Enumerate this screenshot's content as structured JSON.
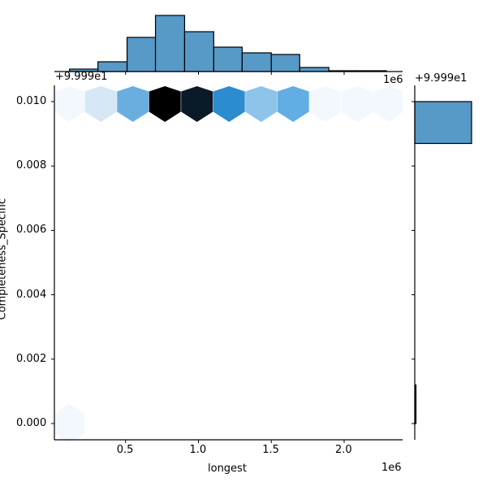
{
  "chart_data": {
    "type": "jointplot-hexbin",
    "title": "",
    "xlabel": "longest",
    "ylabel": "Completeness_Specific",
    "x_scale_label": "1e6",
    "y_offset_label": "+9.999e1",
    "x_ticks": [
      "0.5",
      "1.0",
      "1.5",
      "2.0"
    ],
    "x_tick_values": [
      500000,
      1000000,
      1500000,
      2000000
    ],
    "y_ticks": [
      "0.000",
      "0.002",
      "0.004",
      "0.006",
      "0.008",
      "0.010"
    ],
    "y_tick_values": [
      0.0,
      0.002,
      0.004,
      0.006,
      0.008,
      0.01
    ],
    "xlim": [
      5000,
      2400000
    ],
    "ylim": [
      -0.0005,
      0.0105
    ],
    "hexbin": {
      "colormap": "Blues",
      "cells": [
        {
          "x": 110000,
          "y": 0.01,
          "color": "#f2f8fd"
        },
        {
          "x": 330000,
          "y": 0.01,
          "color": "#d6e7f6"
        },
        {
          "x": 550000,
          "y": 0.01,
          "color": "#6aaee0"
        },
        {
          "x": 770000,
          "y": 0.01,
          "color": "#000000"
        },
        {
          "x": 990000,
          "y": 0.01,
          "color": "#0a1a29"
        },
        {
          "x": 1210000,
          "y": 0.01,
          "color": "#2d8bd0"
        },
        {
          "x": 1430000,
          "y": 0.01,
          "color": "#8ec3ea"
        },
        {
          "x": 1650000,
          "y": 0.01,
          "color": "#62aee4"
        },
        {
          "x": 1870000,
          "y": 0.01,
          "color": "#f2f8fd"
        },
        {
          "x": 2090000,
          "y": 0.01,
          "color": "#f2f8fd"
        },
        {
          "x": 2310000,
          "y": 0.01,
          "color": "#f2f8fd"
        },
        {
          "x": 110000,
          "y": 0.0,
          "color": "#f2f8fd"
        }
      ]
    },
    "marginal_x_histogram": {
      "bin_edges": [
        115000,
        310000,
        510000,
        705000,
        905000,
        1105000,
        1300000,
        1500000,
        1695000,
        1895000,
        2090000,
        2290000
      ],
      "counts": [
        3,
        12,
        42,
        69,
        49,
        30,
        23,
        21,
        5,
        1,
        1
      ],
      "color": "#5799c7"
    },
    "marginal_y_histogram": {
      "bins": [
        {
          "y_from": 0.0087,
          "y_to": 0.01,
          "relative_count": 1.0
        },
        {
          "y_from": -0.0,
          "y_to": 0.0012,
          "relative_count": 0.01
        }
      ],
      "color": "#5799c7"
    },
    "grid": false,
    "legend": null
  },
  "labels": {
    "xlabel": "longest",
    "ylabel": "Completeness_Specific",
    "x_scale": "1e6",
    "y_offset_main": "+9.999e1",
    "y_offset_right": "+9.999e1",
    "x_offset_top": "+9.999e1",
    "x_scale_top": "1e6",
    "xticks": [
      "0.5",
      "1.0",
      "1.5",
      "2.0"
    ],
    "yticks": [
      "0.010",
      "0.008",
      "0.006",
      "0.004",
      "0.002",
      "0.000"
    ]
  }
}
